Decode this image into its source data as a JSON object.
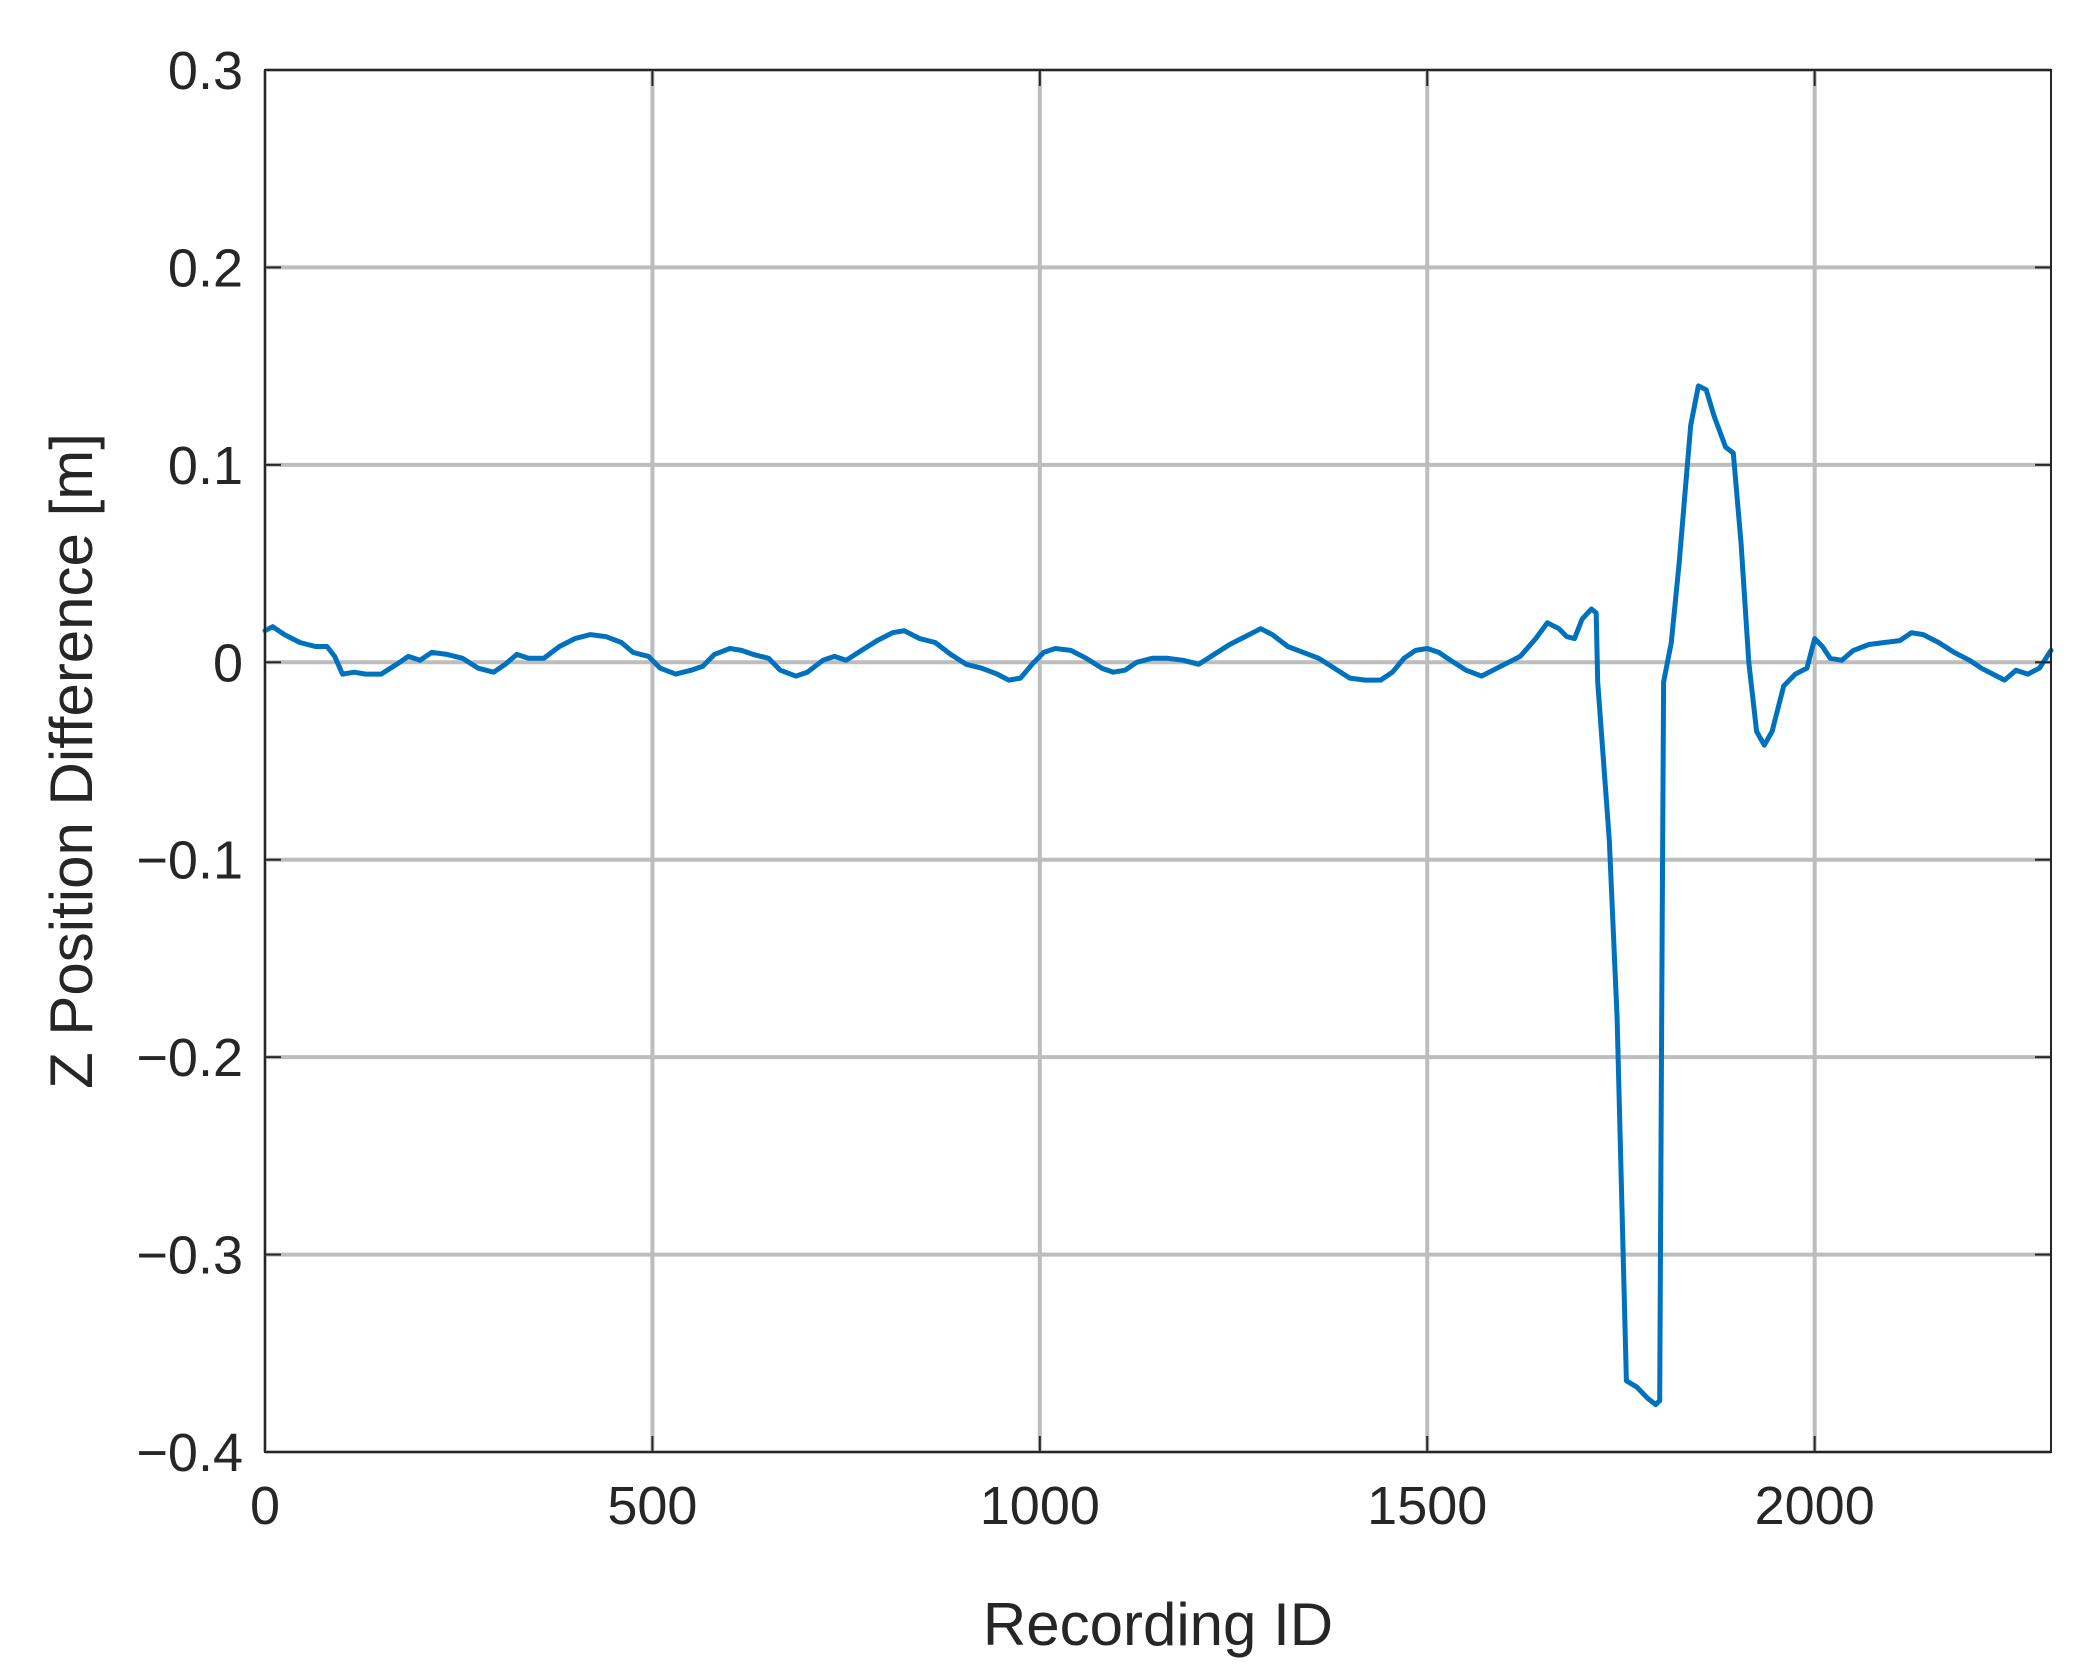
{
  "chart_data": {
    "type": "line",
    "title": "",
    "xlabel": "Recording ID",
    "ylabel": "Z Position Difference [m]",
    "xlim": [
      0,
      2305
    ],
    "ylim": [
      -0.4,
      0.3
    ],
    "xticks": [
      0,
      500,
      1000,
      1500,
      2000
    ],
    "xtick_labels": [
      "0",
      "500",
      "1000",
      "1500",
      "2000"
    ],
    "yticks": [
      -0.4,
      -0.3,
      -0.2,
      -0.1,
      0,
      0.1,
      0.2,
      0.3
    ],
    "ytick_labels": [
      "−0.4",
      "−0.3",
      "−0.2",
      "−0.1",
      "0",
      "0.1",
      "0.2",
      "0.3"
    ],
    "grid": true,
    "legend": "none",
    "series": [
      {
        "color": "#0072BD",
        "points": [
          [
            0,
            0.016
          ],
          [
            10,
            0.018
          ],
          [
            25,
            0.014
          ],
          [
            45,
            0.01
          ],
          [
            65,
            0.008
          ],
          [
            80,
            0.008
          ],
          [
            90,
            0.003
          ],
          [
            100,
            -0.006
          ],
          [
            115,
            -0.005
          ],
          [
            130,
            -0.006
          ],
          [
            150,
            -0.006
          ],
          [
            170,
            -0.001
          ],
          [
            185,
            0.003
          ],
          [
            200,
            0.001
          ],
          [
            215,
            0.005
          ],
          [
            235,
            0.004
          ],
          [
            255,
            0.002
          ],
          [
            275,
            -0.003
          ],
          [
            295,
            -0.005
          ],
          [
            310,
            -0.001
          ],
          [
            325,
            0.004
          ],
          [
            340,
            0.002
          ],
          [
            360,
            0.002
          ],
          [
            380,
            0.008
          ],
          [
            400,
            0.012
          ],
          [
            420,
            0.014
          ],
          [
            440,
            0.013
          ],
          [
            460,
            0.01
          ],
          [
            475,
            0.005
          ],
          [
            495,
            0.003
          ],
          [
            510,
            -0.003
          ],
          [
            530,
            -0.006
          ],
          [
            550,
            -0.004
          ],
          [
            565,
            -0.002
          ],
          [
            580,
            0.004
          ],
          [
            600,
            0.007
          ],
          [
            615,
            0.006
          ],
          [
            630,
            0.004
          ],
          [
            650,
            0.002
          ],
          [
            665,
            -0.004
          ],
          [
            685,
            -0.007
          ],
          [
            700,
            -0.005
          ],
          [
            720,
            0.001
          ],
          [
            735,
            0.003
          ],
          [
            750,
            0.001
          ],
          [
            770,
            0.006
          ],
          [
            790,
            0.011
          ],
          [
            810,
            0.015
          ],
          [
            825,
            0.016
          ],
          [
            845,
            0.012
          ],
          [
            865,
            0.01
          ],
          [
            885,
            0.004
          ],
          [
            905,
            -0.001
          ],
          [
            925,
            -0.003
          ],
          [
            945,
            -0.006
          ],
          [
            960,
            -0.009
          ],
          [
            975,
            -0.008
          ],
          [
            990,
            -0.001
          ],
          [
            1005,
            0.005
          ],
          [
            1020,
            0.007
          ],
          [
            1040,
            0.006
          ],
          [
            1060,
            0.002
          ],
          [
            1080,
            -0.003
          ],
          [
            1095,
            -0.005
          ],
          [
            1110,
            -0.004
          ],
          [
            1125,
            0.0
          ],
          [
            1145,
            0.002
          ],
          [
            1165,
            0.002
          ],
          [
            1185,
            0.001
          ],
          [
            1205,
            -0.001
          ],
          [
            1225,
            0.004
          ],
          [
            1245,
            0.009
          ],
          [
            1265,
            0.013
          ],
          [
            1285,
            0.017
          ],
          [
            1300,
            0.014
          ],
          [
            1320,
            0.008
          ],
          [
            1340,
            0.005
          ],
          [
            1360,
            0.002
          ],
          [
            1380,
            -0.003
          ],
          [
            1400,
            -0.008
          ],
          [
            1420,
            -0.009
          ],
          [
            1440,
            -0.009
          ],
          [
            1455,
            -0.005
          ],
          [
            1470,
            0.002
          ],
          [
            1485,
            0.006
          ],
          [
            1500,
            0.007
          ],
          [
            1515,
            0.005
          ],
          [
            1530,
            0.001
          ],
          [
            1550,
            -0.004
          ],
          [
            1570,
            -0.007
          ],
          [
            1590,
            -0.003
          ],
          [
            1605,
            0.0
          ],
          [
            1620,
            0.003
          ],
          [
            1640,
            0.012
          ],
          [
            1655,
            0.02
          ],
          [
            1670,
            0.017
          ],
          [
            1680,
            0.013
          ],
          [
            1690,
            0.012
          ],
          [
            1700,
            0.022
          ],
          [
            1712,
            0.027
          ],
          [
            1718,
            0.025
          ],
          [
            1720,
            -0.01
          ],
          [
            1735,
            -0.09
          ],
          [
            1745,
            -0.18
          ],
          [
            1757,
            -0.364
          ],
          [
            1770,
            -0.367
          ],
          [
            1785,
            -0.373
          ],
          [
            1795,
            -0.376
          ],
          [
            1800,
            -0.374
          ],
          [
            1803,
            -0.15
          ],
          [
            1805,
            -0.01
          ],
          [
            1815,
            0.01
          ],
          [
            1825,
            0.05
          ],
          [
            1840,
            0.12
          ],
          [
            1850,
            0.14
          ],
          [
            1860,
            0.138
          ],
          [
            1870,
            0.125
          ],
          [
            1885,
            0.109
          ],
          [
            1895,
            0.106
          ],
          [
            1905,
            0.06
          ],
          [
            1915,
            0.0
          ],
          [
            1925,
            -0.035
          ],
          [
            1935,
            -0.042
          ],
          [
            1945,
            -0.035
          ],
          [
            1960,
            -0.012
          ],
          [
            1975,
            -0.006
          ],
          [
            1990,
            -0.003
          ],
          [
            2000,
            0.012
          ],
          [
            2010,
            0.008
          ],
          [
            2020,
            0.002
          ],
          [
            2035,
            0.001
          ],
          [
            2050,
            0.006
          ],
          [
            2070,
            0.009
          ],
          [
            2090,
            0.01
          ],
          [
            2110,
            0.011
          ],
          [
            2125,
            0.015
          ],
          [
            2140,
            0.014
          ],
          [
            2160,
            0.01
          ],
          [
            2180,
            0.005
          ],
          [
            2200,
            0.001
          ],
          [
            2215,
            -0.003
          ],
          [
            2230,
            -0.006
          ],
          [
            2245,
            -0.009
          ],
          [
            2260,
            -0.004
          ],
          [
            2275,
            -0.006
          ],
          [
            2290,
            -0.003
          ],
          [
            2305,
            0.006
          ]
        ]
      }
    ]
  }
}
